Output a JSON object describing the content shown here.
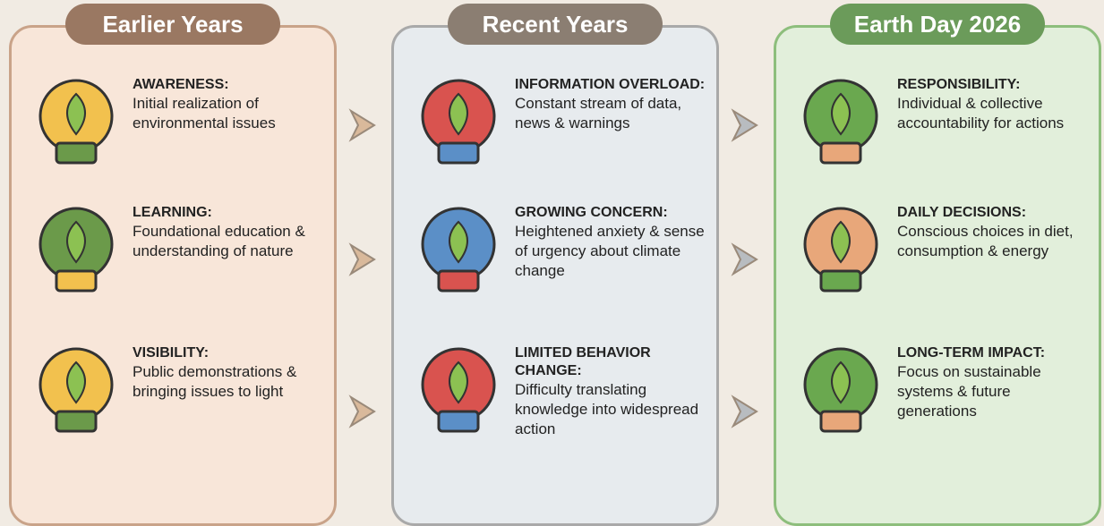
{
  "columns": [
    {
      "title": "Earlier Years",
      "items": [
        {
          "heading": "AWARENESS:",
          "text": "Initial realization of environmental issues"
        },
        {
          "heading": "LEARNING:",
          "text": "Foundational education & understanding of nature"
        },
        {
          "heading": "VISIBILITY:",
          "text": "Public demonstrations & bringing issues to light"
        }
      ]
    },
    {
      "title": "Recent Years",
      "items": [
        {
          "heading": "INFORMATION OVERLOAD:",
          "text": "Constant stream of data, news & warnings"
        },
        {
          "heading": "GROWING CONCERN:",
          "text": "Heightened anxiety & sense of urgency about climate change"
        },
        {
          "heading": "LIMITED BEHAVIOR CHANGE:",
          "text": "Difficulty translating knowledge into widespread action"
        }
      ]
    },
    {
      "title": "Earth Day 2026",
      "items": [
        {
          "heading": "RESPONSIBILITY:",
          "text": "Individual & collective accountability for actions"
        },
        {
          "heading": "DAILY DECISIONS:",
          "text": "Conscious choices in diet, consumption & energy"
        },
        {
          "heading": "LONG-TERM IMPACT:",
          "text": "Focus on sustainable systems & future generations"
        }
      ]
    }
  ]
}
